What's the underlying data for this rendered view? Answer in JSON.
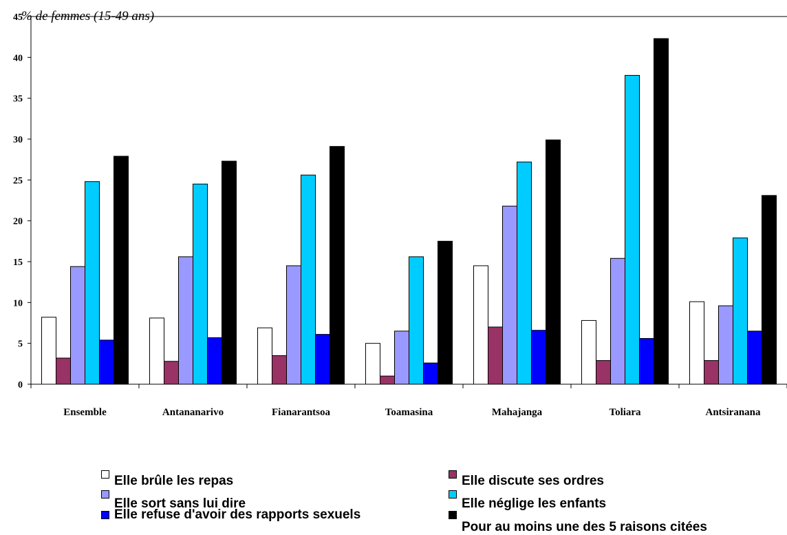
{
  "chart_data": {
    "type": "bar",
    "ylabel": "% de femmes (15-49 ans)",
    "ylim": [
      0,
      45
    ],
    "yticks": [
      "0",
      "5",
      "10",
      "15",
      "20",
      "25",
      "30",
      "35",
      "40",
      "45"
    ],
    "categories": [
      "Ensemble",
      "Antananarivo",
      "Fianarantsoa",
      "Toamasina",
      "Mahajanga",
      "Toliara",
      "Antsiranana"
    ],
    "series": [
      {
        "name": "Elle brûle les repas",
        "color": "#ffffff",
        "values": [
          8.2,
          8.1,
          6.9,
          5.0,
          14.5,
          7.8,
          10.1
        ]
      },
      {
        "name": "Elle discute ses ordres",
        "color": "#993366",
        "values": [
          3.2,
          2.8,
          3.5,
          1.0,
          7.0,
          2.9,
          2.9
        ]
      },
      {
        "name": "Elle sort sans lui dire",
        "color": "#9999ff",
        "values": [
          14.4,
          15.6,
          14.5,
          6.5,
          21.8,
          15.4,
          9.6
        ]
      },
      {
        "name": "Elle néglige les enfants",
        "color": "#00ccff",
        "values": [
          24.8,
          24.5,
          25.6,
          15.6,
          27.2,
          37.8,
          17.9
        ]
      },
      {
        "name": "Elle refuse d'avoir des rapports sexuels",
        "color": "#0000ff",
        "values": [
          5.4,
          5.7,
          6.1,
          2.6,
          6.6,
          5.6,
          6.5
        ]
      },
      {
        "name": "Pour au moins une des 5 raisons citées",
        "color": "#000000",
        "values": [
          27.9,
          27.3,
          29.1,
          17.5,
          29.9,
          42.3,
          23.1
        ]
      }
    ],
    "grid": false,
    "legend_position": "bottom"
  }
}
